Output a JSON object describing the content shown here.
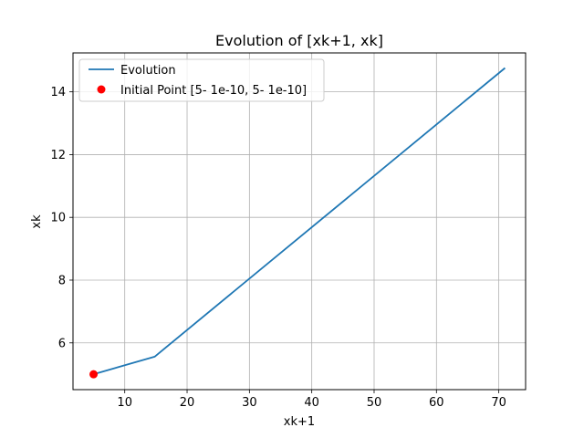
{
  "chart_data": {
    "type": "line",
    "title": "Evolution of [xk+1, xk]",
    "xlabel": "xk+1",
    "ylabel": "xk",
    "xlim": [
      1.7,
      74.3
    ],
    "ylim": [
      4.51,
      15.24
    ],
    "xticks": [
      10,
      20,
      30,
      40,
      50,
      60,
      70
    ],
    "yticks": [
      6,
      8,
      10,
      12,
      14
    ],
    "grid": true,
    "legend_position": "top-left",
    "series": [
      {
        "name": "Evolution",
        "color": "#1f77b4",
        "x": [
          5,
          14.8,
          71
        ],
        "y": [
          5,
          5.56,
          14.76
        ]
      }
    ],
    "points": [
      {
        "name": "Initial Point [5- 1e-10, 5- 1e-10]",
        "color": "#ff0000",
        "x": 5,
        "y": 5
      }
    ]
  }
}
